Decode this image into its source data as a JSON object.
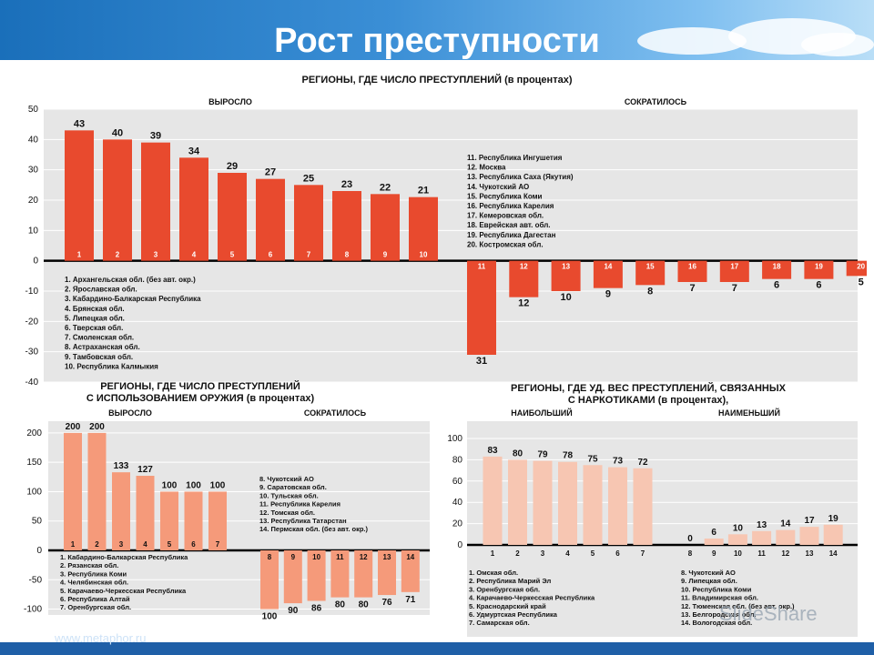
{
  "title": "Рост преступности",
  "footer_left": "www.metaphor.ru",
  "watermark": "SlideShare",
  "colors": {
    "main": "#e84a2e",
    "light": "#f59a7a",
    "drug": "#f7c6b2",
    "axis": "#000000",
    "bg": "#e6e6e6"
  },
  "chart_data": [
    {
      "type": "bar",
      "title": "РЕГИОНЫ, ГДЕ ЧИСЛО ПРЕСТУПЛЕНИЙ (в процентах)",
      "group_labels": [
        "ВЫРОСЛО",
        "СОКРАТИЛОСЬ"
      ],
      "ylim": [
        -40,
        50
      ],
      "yticks": [
        50,
        40,
        30,
        20,
        10,
        0,
        -10,
        -20,
        -30,
        -40
      ],
      "categories": [
        "1",
        "2",
        "3",
        "4",
        "5",
        "6",
        "7",
        "8",
        "9",
        "10",
        "11",
        "12",
        "13",
        "14",
        "15",
        "16",
        "17",
        "18",
        "19",
        "20"
      ],
      "values": [
        43,
        40,
        39,
        34,
        29,
        27,
        25,
        23,
        22,
        21,
        -31,
        -12,
        -10,
        -9,
        -8,
        -7,
        -7,
        -6,
        -6,
        -5
      ],
      "value_labels": [
        "43",
        "40",
        "39",
        "34",
        "29",
        "27",
        "25",
        "23",
        "22",
        "21",
        "31",
        "12",
        "10",
        "9",
        "8",
        "7",
        "7",
        "6",
        "6",
        "5"
      ],
      "legend_grew": [
        "1. Архангельская обл. (без авт. окр.)",
        "2. Ярославская обл.",
        "3. Кабардино-Балкарская Республика",
        "4. Брянская обл.",
        "5. Липецкая обл.",
        "6. Тверская обл.",
        "7. Смоленская обл.",
        "8. Астраханская обл.",
        "9. Тамбовская обл.",
        "10. Республика Калмыкия"
      ],
      "legend_fell": [
        "11. Республика Ингушетия",
        "12. Москва",
        "13. Республика Саха (Якутия)",
        "14. Чукотский АО",
        "15. Республика Коми",
        "16. Республика Карелия",
        "17. Кемеровская обл.",
        "18. Еврейская авт. обл.",
        "19. Республика Дагестан",
        "20. Костромская обл."
      ]
    },
    {
      "type": "bar",
      "title": "РЕГИОНЫ, ГДЕ ЧИСЛО ПРЕСТУПЛЕНИЙ С ИСПОЛЬЗОВАНИЕМ ОРУЖИЯ (в процентах)",
      "title_lines": [
        "РЕГИОНЫ, ГДЕ ЧИСЛО ПРЕСТУПЛЕНИЙ",
        "С ИСПОЛЬЗОВАНИЕМ ОРУЖИЯ (в процентах)"
      ],
      "group_labels": [
        "ВЫРОСЛО",
        "СОКРАТИЛОСЬ"
      ],
      "ylim": [
        -110,
        220
      ],
      "yticks": [
        200,
        150,
        100,
        50,
        0,
        -50,
        -100
      ],
      "categories": [
        "1",
        "2",
        "3",
        "4",
        "5",
        "6",
        "7",
        "8",
        "9",
        "10",
        "11",
        "12",
        "13",
        "14"
      ],
      "values": [
        200,
        200,
        133,
        127,
        100,
        100,
        100,
        -100,
        -90,
        -86,
        -80,
        -80,
        -76,
        -71
      ],
      "value_labels": [
        "200",
        "200",
        "133",
        "127",
        "100",
        "100",
        "100",
        "100",
        "90",
        "86",
        "80",
        "80",
        "76",
        "71"
      ],
      "legend_grew": [
        "1. Кабардино-Балкарская Республика",
        "2. Рязанская обл.",
        "3. Республика Коми",
        "4. Челябинская обл.",
        "5. Карачаево-Черкесская Республика",
        "6. Республика Алтай",
        "7. Оренбургская обл."
      ],
      "legend_fell": [
        "8. Чукотский АО",
        "9. Саратовская обл.",
        "10. Тульская обл.",
        "11. Республика Карелия",
        "12. Томская обл.",
        "13. Республика Татарстан",
        "14. Пермская обл. (без авт. окр.)"
      ]
    },
    {
      "type": "bar",
      "title": "РЕГИОНЫ, ГДЕ УД. ВЕС ПРЕСТУПЛЕНИЙ, СВЯЗАННЫХ С НАРКОТИКАМИ (в процентах),",
      "title_lines": [
        "РЕГИОНЫ, ГДЕ УД. ВЕС ПРЕСТУПЛЕНИЙ, СВЯЗАННЫХ",
        "С НАРКОТИКАМИ (в процентах),"
      ],
      "group_labels": [
        "НАИБОЛЬШИЙ",
        "НАИМЕНЬШИЙ"
      ],
      "ylim": [
        0,
        100
      ],
      "yticks": [
        100,
        80,
        60,
        40,
        20,
        0
      ],
      "categories": [
        "1",
        "2",
        "3",
        "4",
        "5",
        "6",
        "7",
        "8",
        "9",
        "10",
        "11",
        "12",
        "13",
        "14"
      ],
      "values": [
        83,
        80,
        79,
        78,
        75,
        73,
        72,
        0,
        6,
        10,
        13,
        14,
        17,
        19
      ],
      "value_labels": [
        "83",
        "80",
        "79",
        "78",
        "75",
        "73",
        "72",
        "0",
        "6",
        "10",
        "13",
        "14",
        "17",
        "19"
      ],
      "legend_high": [
        "1. Омская обл.",
        "2. Республика Марий Эл",
        "3. Оренбургская обл.",
        "4. Карачаево-Черкесская Республика",
        "5. Краснодарский край",
        "6. Удмуртская Республика",
        "7. Самарская обл."
      ],
      "legend_low": [
        "8. Чукотский АО",
        "9. Липецкая обл.",
        "10. Республика Коми",
        "11. Владимирская обл.",
        "12. Тюменская обл. (без авт. окр.)",
        "13. Белгородская обл.",
        "14. Вологодская обл."
      ]
    }
  ]
}
